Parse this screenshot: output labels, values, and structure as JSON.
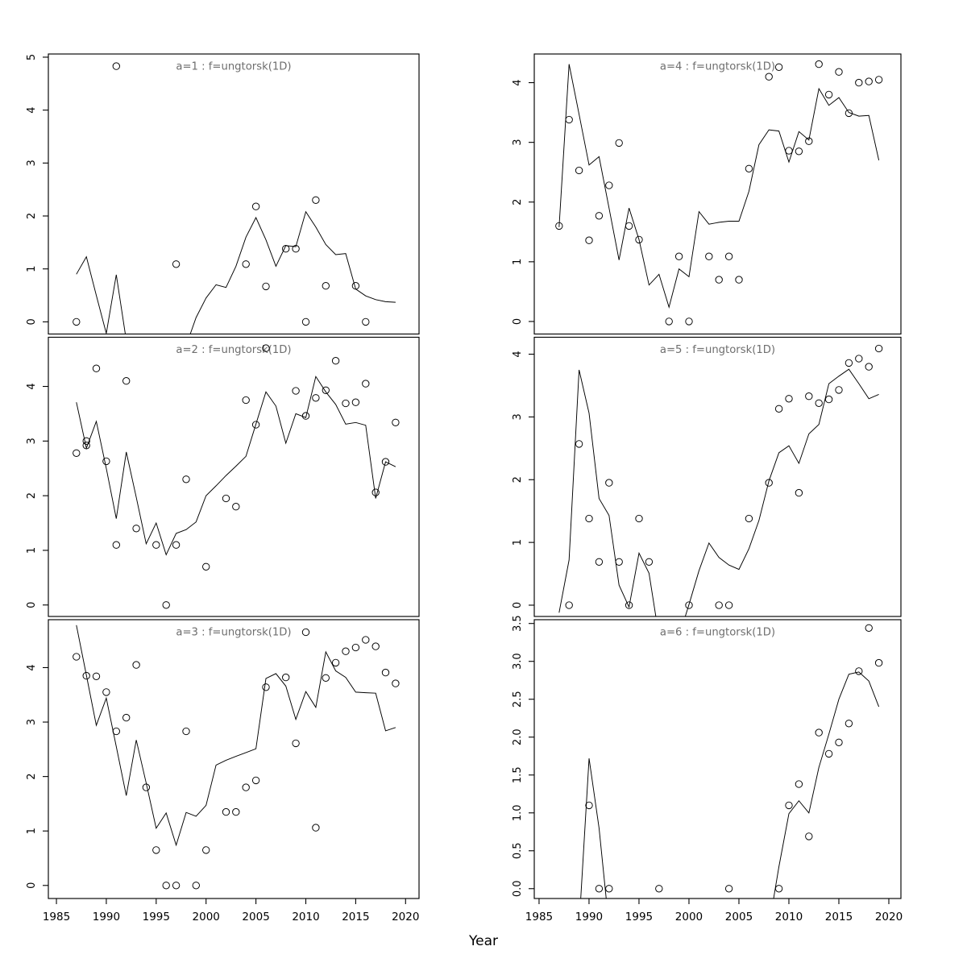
{
  "figure": {
    "xlabel": "Year",
    "background_color": "#ffffff",
    "axis_color": "#000000",
    "panel_title_color": "#6e6e6e",
    "xticks": [
      "1985",
      "1990",
      "1995",
      "2000",
      "2005",
      "2010",
      "2015",
      "2020"
    ]
  },
  "chart_data": [
    {
      "type": "scatter+line",
      "title": "a=1 : f=ungtorsk(1D)",
      "ylim": [
        -0.23,
        5.06
      ],
      "yticks": [
        "0",
        "1",
        "2",
        "3",
        "4",
        "5"
      ],
      "points": [
        [
          1987,
          0.0
        ],
        [
          1991,
          4.83
        ],
        [
          1997,
          1.09
        ],
        [
          2004,
          1.09
        ],
        [
          2005,
          2.18
        ],
        [
          2006,
          0.67
        ],
        [
          2008,
          1.38
        ],
        [
          2009,
          1.38
        ],
        [
          2010,
          0.0
        ],
        [
          2011,
          2.3
        ],
        [
          2012,
          0.68
        ],
        [
          2015,
          0.68
        ],
        [
          2016,
          0.0
        ]
      ],
      "line": [
        [
          1987,
          0.9
        ],
        [
          1988,
          1.23
        ],
        [
          1989,
          0.5
        ],
        [
          1990,
          -0.22
        ],
        [
          1991,
          0.89
        ],
        [
          1992,
          -0.35
        ],
        [
          1993,
          -0.6
        ],
        [
          1997,
          -0.6
        ],
        [
          1998,
          -0.45
        ],
        [
          1999,
          0.08
        ],
        [
          2000,
          0.45
        ],
        [
          2001,
          0.7
        ],
        [
          2002,
          0.65
        ],
        [
          2003,
          1.05
        ],
        [
          2004,
          1.6
        ],
        [
          2005,
          1.97
        ],
        [
          2006,
          1.55
        ],
        [
          2007,
          1.05
        ],
        [
          2008,
          1.44
        ],
        [
          2009,
          1.42
        ],
        [
          2010,
          2.08
        ],
        [
          2011,
          1.79
        ],
        [
          2012,
          1.46
        ],
        [
          2013,
          1.27
        ],
        [
          2014,
          1.29
        ],
        [
          2015,
          0.62
        ],
        [
          2016,
          0.49
        ],
        [
          2017,
          0.42
        ],
        [
          2018,
          0.38
        ],
        [
          2019,
          0.37
        ]
      ]
    },
    {
      "type": "scatter+line",
      "title": "a=2 : f=ungtorsk(1D)",
      "ylim": [
        -0.21,
        4.9
      ],
      "yticks": [
        "0",
        "1",
        "2",
        "3",
        "4"
      ],
      "points": [
        [
          1987,
          2.78
        ],
        [
          1988,
          3.0
        ],
        [
          1988,
          2.92
        ],
        [
          1989,
          4.33
        ],
        [
          1990,
          2.63
        ],
        [
          1991,
          1.1
        ],
        [
          1992,
          4.1
        ],
        [
          1993,
          1.4
        ],
        [
          1995,
          1.1
        ],
        [
          1996,
          0.0
        ],
        [
          1997,
          1.1
        ],
        [
          1998,
          2.3
        ],
        [
          2000,
          0.7
        ],
        [
          2002,
          1.95
        ],
        [
          2003,
          1.8
        ],
        [
          2004,
          3.75
        ],
        [
          2005,
          3.3
        ],
        [
          2006,
          4.7
        ],
        [
          2009,
          3.92
        ],
        [
          2010,
          3.46
        ],
        [
          2011,
          3.79
        ],
        [
          2012,
          3.93
        ],
        [
          2013,
          4.47
        ],
        [
          2014,
          3.69
        ],
        [
          2015,
          3.71
        ],
        [
          2016,
          4.05
        ],
        [
          2017,
          2.06
        ],
        [
          2018,
          2.62
        ],
        [
          2019,
          3.34
        ]
      ],
      "line": [
        [
          1987,
          3.71
        ],
        [
          1988,
          2.87
        ],
        [
          1989,
          3.36
        ],
        [
          1990,
          2.5
        ],
        [
          1991,
          1.58
        ],
        [
          1992,
          2.8
        ],
        [
          1993,
          1.97
        ],
        [
          1994,
          1.12
        ],
        [
          1995,
          1.5
        ],
        [
          1996,
          0.92
        ],
        [
          1997,
          1.31
        ],
        [
          1998,
          1.38
        ],
        [
          1999,
          1.52
        ],
        [
          2000,
          2.0
        ],
        [
          2001,
          2.18
        ],
        [
          2002,
          2.37
        ],
        [
          2003,
          2.54
        ],
        [
          2004,
          2.72
        ],
        [
          2005,
          3.31
        ],
        [
          2006,
          3.9
        ],
        [
          2007,
          3.64
        ],
        [
          2008,
          2.96
        ],
        [
          2009,
          3.5
        ],
        [
          2010,
          3.43
        ],
        [
          2011,
          4.18
        ],
        [
          2012,
          3.9
        ],
        [
          2013,
          3.67
        ],
        [
          2014,
          3.31
        ],
        [
          2015,
          3.34
        ],
        [
          2016,
          3.29
        ],
        [
          2017,
          1.95
        ],
        [
          2018,
          2.62
        ],
        [
          2019,
          2.53
        ]
      ]
    },
    {
      "type": "scatter+line",
      "title": "a=3 : f=ungtorsk(1D)",
      "ylim": [
        -0.24,
        4.88
      ],
      "yticks": [
        "0",
        "1",
        "2",
        "3",
        "4"
      ],
      "points": [
        [
          1987,
          4.2
        ],
        [
          1988,
          3.85
        ],
        [
          1989,
          3.84
        ],
        [
          1990,
          3.55
        ],
        [
          1991,
          2.83
        ],
        [
          1992,
          3.08
        ],
        [
          1993,
          4.05
        ],
        [
          1994,
          1.8
        ],
        [
          1995,
          0.65
        ],
        [
          1996,
          0.0
        ],
        [
          1997,
          0.0
        ],
        [
          1998,
          2.83
        ],
        [
          1999,
          0.0
        ],
        [
          2000,
          0.65
        ],
        [
          2002,
          1.35
        ],
        [
          2003,
          1.35
        ],
        [
          2004,
          1.8
        ],
        [
          2005,
          1.93
        ],
        [
          2006,
          3.64
        ],
        [
          2008,
          3.82
        ],
        [
          2009,
          2.61
        ],
        [
          2010,
          4.65
        ],
        [
          2011,
          1.06
        ],
        [
          2012,
          3.81
        ],
        [
          2013,
          4.09
        ],
        [
          2014,
          4.3
        ],
        [
          2015,
          4.37
        ],
        [
          2016,
          4.51
        ],
        [
          2017,
          4.39
        ],
        [
          2018,
          3.91
        ],
        [
          2019,
          3.71
        ]
      ],
      "line": [
        [
          1987,
          4.78
        ],
        [
          1988,
          3.86
        ],
        [
          1989,
          2.94
        ],
        [
          1990,
          3.44
        ],
        [
          1991,
          2.55
        ],
        [
          1992,
          1.65
        ],
        [
          1993,
          2.67
        ],
        [
          1994,
          1.88
        ],
        [
          1995,
          1.05
        ],
        [
          1996,
          1.33
        ],
        [
          1997,
          0.74
        ],
        [
          1998,
          1.34
        ],
        [
          1999,
          1.27
        ],
        [
          2000,
          1.47
        ],
        [
          2001,
          2.21
        ],
        [
          2002,
          2.3
        ],
        [
          2003,
          2.37
        ],
        [
          2004,
          2.44
        ],
        [
          2005,
          2.51
        ],
        [
          2006,
          3.8
        ],
        [
          2007,
          3.89
        ],
        [
          2008,
          3.66
        ],
        [
          2009,
          3.05
        ],
        [
          2010,
          3.56
        ],
        [
          2011,
          3.27
        ],
        [
          2012,
          4.29
        ],
        [
          2013,
          3.94
        ],
        [
          2014,
          3.82
        ],
        [
          2015,
          3.55
        ],
        [
          2016,
          3.54
        ],
        [
          2017,
          3.53
        ],
        [
          2018,
          2.84
        ],
        [
          2019,
          2.9
        ]
      ]
    },
    {
      "type": "scatter+line",
      "title": "a=4 : f=ungtorsk(1D)",
      "ylim": [
        -0.21,
        4.48
      ],
      "yticks": [
        "0",
        "1",
        "2",
        "3",
        "4"
      ],
      "points": [
        [
          1987,
          1.6
        ],
        [
          1988,
          3.38
        ],
        [
          1989,
          2.53
        ],
        [
          1990,
          1.36
        ],
        [
          1991,
          1.77
        ],
        [
          1992,
          2.28
        ],
        [
          1993,
          2.99
        ],
        [
          1994,
          1.6
        ],
        [
          1995,
          1.37
        ],
        [
          1998,
          0.0
        ],
        [
          1999,
          1.09
        ],
        [
          2000,
          0.0
        ],
        [
          2002,
          1.09
        ],
        [
          2003,
          0.7
        ],
        [
          2004,
          1.09
        ],
        [
          2005,
          0.7
        ],
        [
          2006,
          2.56
        ],
        [
          2008,
          4.1
        ],
        [
          2009,
          4.26
        ],
        [
          2010,
          2.86
        ],
        [
          2011,
          2.85
        ],
        [
          2012,
          3.02
        ],
        [
          2013,
          4.31
        ],
        [
          2014,
          3.8
        ],
        [
          2015,
          4.18
        ],
        [
          2016,
          3.49
        ],
        [
          2017,
          4.0
        ],
        [
          2018,
          4.02
        ],
        [
          2019,
          4.05
        ]
      ],
      "line": [
        [
          1987,
          1.58
        ],
        [
          1988,
          4.31
        ],
        [
          1989,
          3.47
        ],
        [
          1990,
          2.62
        ],
        [
          1991,
          2.76
        ],
        [
          1992,
          1.9
        ],
        [
          1993,
          1.03
        ],
        [
          1994,
          1.9
        ],
        [
          1995,
          1.37
        ],
        [
          1996,
          0.61
        ],
        [
          1997,
          0.79
        ],
        [
          1998,
          0.24
        ],
        [
          1999,
          0.88
        ],
        [
          2000,
          0.75
        ],
        [
          2001,
          1.84
        ],
        [
          2002,
          1.63
        ],
        [
          2003,
          1.66
        ],
        [
          2004,
          1.68
        ],
        [
          2005,
          1.68
        ],
        [
          2006,
          2.18
        ],
        [
          2007,
          2.96
        ],
        [
          2008,
          3.21
        ],
        [
          2009,
          3.19
        ],
        [
          2010,
          2.67
        ],
        [
          2011,
          3.18
        ],
        [
          2012,
          3.04
        ],
        [
          2013,
          3.9
        ],
        [
          2014,
          3.62
        ],
        [
          2015,
          3.75
        ],
        [
          2016,
          3.5
        ],
        [
          2017,
          3.44
        ],
        [
          2018,
          3.45
        ],
        [
          2019,
          2.7
        ]
      ]
    },
    {
      "type": "scatter+line",
      "title": "a=5 : f=ungtorsk(1D)",
      "ylim": [
        -0.18,
        4.27
      ],
      "yticks": [
        "0",
        "1",
        "2",
        "3",
        "4"
      ],
      "points": [
        [
          1988,
          0.0
        ],
        [
          1989,
          2.57
        ],
        [
          1990,
          1.38
        ],
        [
          1991,
          0.69
        ],
        [
          1992,
          1.95
        ],
        [
          1993,
          0.69
        ],
        [
          1994,
          0.0
        ],
        [
          1995,
          1.38
        ],
        [
          1996,
          0.69
        ],
        [
          2000,
          0.0
        ],
        [
          2003,
          0.0
        ],
        [
          2004,
          0.0
        ],
        [
          2006,
          1.38
        ],
        [
          2008,
          1.95
        ],
        [
          2009,
          3.13
        ],
        [
          2010,
          3.29
        ],
        [
          2011,
          1.79
        ],
        [
          2012,
          3.33
        ],
        [
          2013,
          3.22
        ],
        [
          2014,
          3.28
        ],
        [
          2015,
          3.43
        ],
        [
          2016,
          3.86
        ],
        [
          2017,
          3.93
        ],
        [
          2018,
          3.8
        ],
        [
          2019,
          4.09
        ]
      ],
      "line": [
        [
          1987,
          -0.12
        ],
        [
          1988,
          0.72
        ],
        [
          1989,
          3.75
        ],
        [
          1990,
          3.06
        ],
        [
          1991,
          1.7
        ],
        [
          1992,
          1.43
        ],
        [
          1993,
          0.32
        ],
        [
          1994,
          -0.03
        ],
        [
          1995,
          0.83
        ],
        [
          1996,
          0.51
        ],
        [
          1997,
          -0.5
        ],
        [
          1998,
          -0.8
        ],
        [
          1999,
          -0.5
        ],
        [
          2000,
          0.01
        ],
        [
          2001,
          0.55
        ],
        [
          2002,
          0.99
        ],
        [
          2003,
          0.76
        ],
        [
          2004,
          0.64
        ],
        [
          2005,
          0.57
        ],
        [
          2006,
          0.9
        ],
        [
          2007,
          1.35
        ],
        [
          2008,
          1.98
        ],
        [
          2009,
          2.43
        ],
        [
          2010,
          2.54
        ],
        [
          2011,
          2.26
        ],
        [
          2012,
          2.73
        ],
        [
          2013,
          2.88
        ],
        [
          2014,
          3.53
        ],
        [
          2015,
          3.65
        ],
        [
          2016,
          3.76
        ],
        [
          2017,
          3.53
        ],
        [
          2018,
          3.29
        ],
        [
          2019,
          3.36
        ]
      ]
    },
    {
      "type": "scatter+line",
      "title": "a=6 : f=ungtorsk(1D)",
      "ylim": [
        -0.13,
        3.55
      ],
      "yticks": [
        "0.0",
        "0.5",
        "1.0",
        "1.5",
        "2.0",
        "2.5",
        "3.0",
        "3.5"
      ],
      "points": [
        [
          1990,
          1.1
        ],
        [
          1991,
          0.0
        ],
        [
          1992,
          0.0
        ],
        [
          1997,
          0.0
        ],
        [
          2004,
          0.0
        ],
        [
          2009,
          0.0
        ],
        [
          2010,
          1.1
        ],
        [
          2011,
          1.38
        ],
        [
          2012,
          0.69
        ],
        [
          2013,
          2.06
        ],
        [
          2014,
          1.78
        ],
        [
          2015,
          1.93
        ],
        [
          2016,
          2.18
        ],
        [
          2017,
          2.87
        ],
        [
          2018,
          3.44
        ],
        [
          2019,
          2.98
        ]
      ],
      "line": [
        [
          1989,
          -0.5
        ],
        [
          1990,
          1.72
        ],
        [
          1991,
          0.8
        ],
        [
          1992,
          -0.5
        ],
        [
          2008,
          -0.5
        ],
        [
          2009,
          0.29
        ],
        [
          2010,
          0.99
        ],
        [
          2011,
          1.16
        ],
        [
          2012,
          1.0
        ],
        [
          2013,
          1.6
        ],
        [
          2014,
          2.04
        ],
        [
          2015,
          2.5
        ],
        [
          2016,
          2.83
        ],
        [
          2017,
          2.86
        ],
        [
          2018,
          2.74
        ],
        [
          2019,
          2.4
        ]
      ]
    }
  ]
}
